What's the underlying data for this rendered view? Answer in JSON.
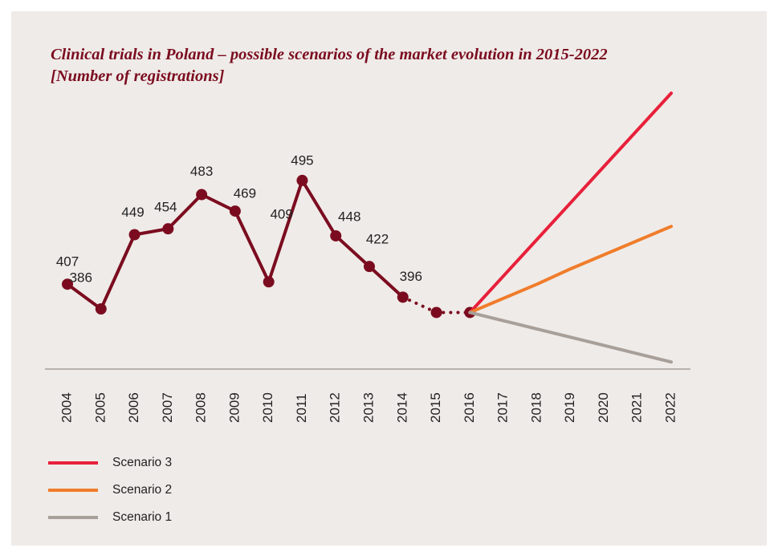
{
  "chart_data": {
    "type": "line",
    "title": "Clinical trials in Poland – possible scenarios of the market evolution in 2015-2022 [Number of registrations]",
    "categories": [
      "2004",
      "2005",
      "2006",
      "2007",
      "2008",
      "2009",
      "2010",
      "2011",
      "2012",
      "2013",
      "2014",
      "2015",
      "2016",
      "2017",
      "2018",
      "2019",
      "2020",
      "2021",
      "2022"
    ],
    "ylim": [
      335,
      580
    ],
    "dotted_from": "2014",
    "legend": "bottom-left",
    "series": [
      {
        "color": "#7b0c1f",
        "markers": true,
        "data_labels": true,
        "values": [
          407,
          386,
          449,
          454,
          483,
          469,
          409,
          495,
          448,
          422,
          396,
          383,
          383,
          null,
          null,
          null,
          null,
          null,
          null
        ]
      },
      {
        "name": "Scenario 3",
        "color": "#e8203a",
        "values": [
          null,
          null,
          null,
          null,
          null,
          null,
          null,
          null,
          null,
          null,
          null,
          null,
          383,
          414,
          445,
          476,
          507,
          538,
          569
        ]
      },
      {
        "name": "Scenario 2",
        "color": "#f07c2a",
        "values": [
          null,
          null,
          null,
          null,
          null,
          null,
          null,
          null,
          null,
          null,
          null,
          null,
          383,
          395,
          407,
          420,
          432,
          444,
          456
        ]
      },
      {
        "name": "Scenario 1",
        "color": "#a89f98",
        "values": [
          null,
          null,
          null,
          null,
          null,
          null,
          null,
          null,
          null,
          null,
          null,
          null,
          383,
          376,
          369,
          362,
          355,
          348,
          341
        ]
      }
    ]
  }
}
